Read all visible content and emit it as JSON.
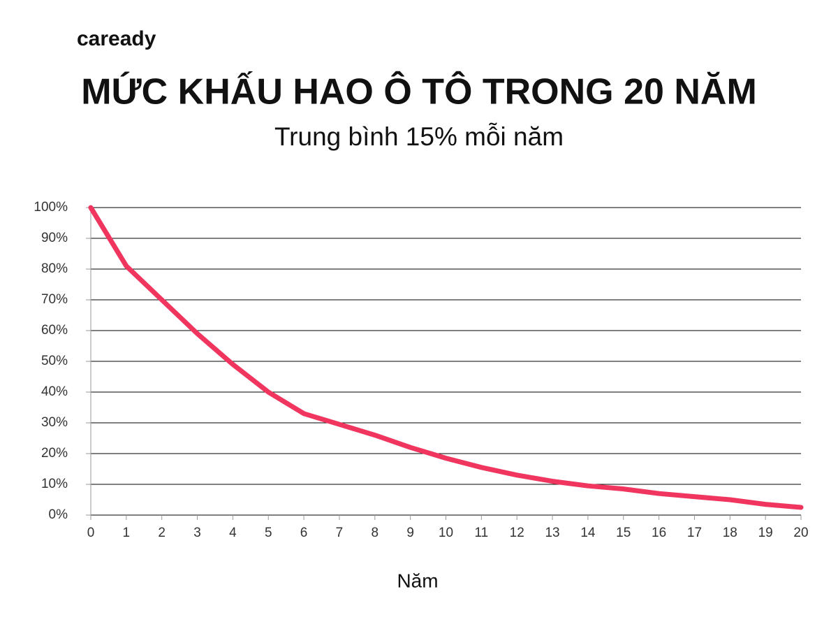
{
  "brand": "caready",
  "chart_data": {
    "type": "line",
    "title": "MỨC KHẤU HAO Ô TÔ TRONG 20 NĂM",
    "subtitle": "Trung bình 15% mỗi năm",
    "x_label": "Năm",
    "x": [
      0,
      1,
      2,
      3,
      4,
      5,
      6,
      7,
      8,
      9,
      10,
      11,
      12,
      13,
      14,
      15,
      16,
      17,
      18,
      19,
      20
    ],
    "series": [
      {
        "color": "#f0365f",
        "values": [
          100,
          81,
          70,
          59,
          49,
          40,
          33,
          29.5,
          26,
          22,
          18.5,
          15.5,
          13,
          11,
          9.5,
          8.5,
          7,
          6,
          5,
          3.5,
          2.5
        ]
      }
    ],
    "xlim": [
      0,
      20
    ],
    "xticks": [
      0,
      1,
      2,
      3,
      4,
      5,
      6,
      7,
      8,
      9,
      10,
      11,
      12,
      13,
      14,
      15,
      16,
      17,
      18,
      19,
      20
    ],
    "ylim": [
      0,
      100
    ],
    "yticks": [
      {
        "value": 0,
        "label": "0%"
      },
      {
        "value": 10,
        "label": "10%"
      },
      {
        "value": 20,
        "label": "20%"
      },
      {
        "value": 30,
        "label": "30%"
      },
      {
        "value": 40,
        "label": "40%"
      },
      {
        "value": 50,
        "label": "50%"
      },
      {
        "value": 60,
        "label": "60%"
      },
      {
        "value": 70,
        "label": "70%"
      },
      {
        "value": 80,
        "label": "80%"
      },
      {
        "value": 90,
        "label": "90%"
      },
      {
        "value": 100,
        "label": "100%"
      }
    ],
    "grid": true
  }
}
